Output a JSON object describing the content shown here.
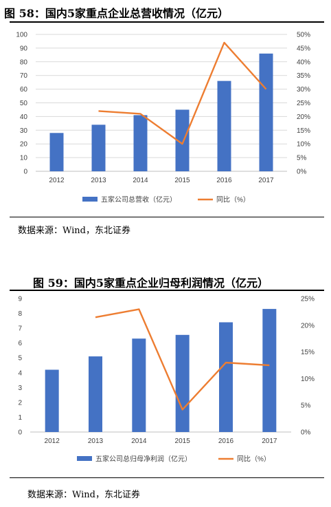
{
  "figures": [
    {
      "title": "图 58：国内5家重点企业总营收情况（亿元）",
      "source": "数据来源：Wind，东北证券",
      "legend": [
        "五家公司总营收（亿元）",
        "同比（%）"
      ]
    },
    {
      "title": "图 59：国内5家重点企业归母利润情况（亿元）",
      "source": "数据来源：Wind，东北证券",
      "legend": [
        "五家公司总归母净利润（亿元）",
        "同比（%）"
      ]
    }
  ],
  "colors": {
    "bar": "#4472C4",
    "line": "#ED7D31",
    "grid": "#D9D9D9",
    "axis_text": "#404040"
  },
  "chart_data": [
    {
      "type": "bar",
      "categories": [
        "2012",
        "2013",
        "2014",
        "2015",
        "2016",
        "2017"
      ],
      "series": [
        {
          "name": "五家公司总营收（亿元）",
          "type": "bar",
          "axis": "left",
          "values": [
            28,
            34,
            41,
            45,
            66,
            86
          ]
        },
        {
          "name": "同比（%）",
          "type": "line",
          "axis": "right",
          "values": [
            null,
            22,
            21,
            10,
            47,
            30
          ]
        }
      ],
      "ylim": [
        0,
        100
      ],
      "yticks": [
        0,
        10,
        20,
        30,
        40,
        50,
        60,
        70,
        80,
        90,
        100
      ],
      "y2lim": [
        0,
        50
      ],
      "y2ticks": [
        0,
        5,
        10,
        15,
        20,
        25,
        30,
        35,
        40,
        45,
        50
      ],
      "y2_unit": "%",
      "grid": true,
      "legend_position": "bottom"
    },
    {
      "type": "bar",
      "categories": [
        "2012",
        "2013",
        "2014",
        "2015",
        "2016",
        "2017"
      ],
      "series": [
        {
          "name": "五家公司总归母净利润（亿元）",
          "type": "bar",
          "axis": "left",
          "values": [
            4.2,
            5.1,
            6.3,
            6.55,
            7.4,
            8.3
          ]
        },
        {
          "name": "同比（%）",
          "type": "line",
          "axis": "right",
          "values": [
            null,
            21.5,
            23,
            4.2,
            13,
            12.5
          ]
        }
      ],
      "ylim": [
        0,
        9
      ],
      "yticks": [
        0,
        1,
        2,
        3,
        4,
        5,
        6,
        7,
        8,
        9
      ],
      "y2lim": [
        0,
        25
      ],
      "y2ticks": [
        0,
        5,
        10,
        15,
        20,
        25
      ],
      "y2_unit": "%",
      "grid": false,
      "legend_position": "bottom"
    }
  ]
}
